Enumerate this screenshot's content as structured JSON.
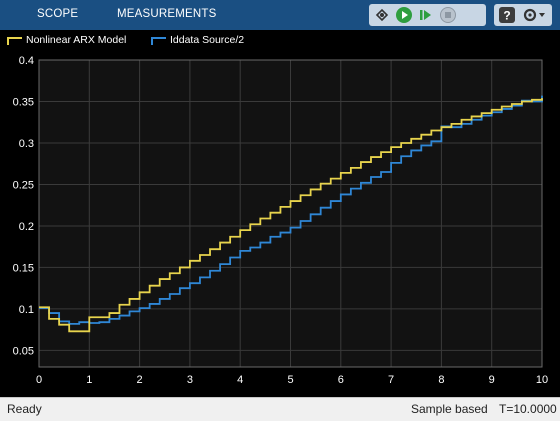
{
  "toolstrip": {
    "tabs": [
      {
        "label": "SCOPE"
      },
      {
        "label": "MEASUREMENTS"
      }
    ],
    "buttons": [
      {
        "name": "highlight-block-icon"
      },
      {
        "name": "run-icon"
      },
      {
        "name": "step-forward-icon"
      },
      {
        "name": "stop-icon"
      },
      {
        "name": "help-icon"
      },
      {
        "name": "settings-dropdown-icon"
      }
    ]
  },
  "legend": [
    {
      "label": "Nonlinear ARX Model",
      "color": "#e8d44d"
    },
    {
      "label": "Iddata Source/2",
      "color": "#2f87d6"
    }
  ],
  "status": {
    "ready": "Ready",
    "mode": "Sample based",
    "time": "T=10.0000"
  },
  "chart_data": {
    "type": "line",
    "step": true,
    "grid": true,
    "background": "#000000",
    "xlim": [
      0,
      10
    ],
    "ylim": [
      0.03,
      0.4
    ],
    "xticks": [
      0,
      1,
      2,
      3,
      4,
      5,
      6,
      7,
      8,
      9,
      10
    ],
    "yticks": [
      0.05,
      0.1,
      0.15,
      0.2,
      0.25,
      0.3,
      0.35,
      0.4
    ],
    "x": [
      0,
      0.2,
      0.4,
      0.6,
      0.8,
      1.0,
      1.2,
      1.4,
      1.6,
      1.8,
      2.0,
      2.2,
      2.4,
      2.6,
      2.8,
      3.0,
      3.2,
      3.4,
      3.6,
      3.8,
      4.0,
      4.2,
      4.4,
      4.6,
      4.8,
      5.0,
      5.2,
      5.4,
      5.6,
      5.8,
      6.0,
      6.2,
      6.4,
      6.6,
      6.8,
      7.0,
      7.2,
      7.4,
      7.6,
      7.8,
      8.0,
      8.2,
      8.4,
      8.6,
      8.8,
      9.0,
      9.2,
      9.4,
      9.6,
      9.8,
      10.0
    ],
    "series": [
      {
        "name": "Nonlinear ARX Model",
        "color": "#e8d44d",
        "values": [
          0.102,
          0.088,
          0.081,
          0.073,
          0.073,
          0.09,
          0.09,
          0.095,
          0.105,
          0.112,
          0.12,
          0.128,
          0.136,
          0.143,
          0.15,
          0.158,
          0.165,
          0.172,
          0.18,
          0.187,
          0.195,
          0.202,
          0.209,
          0.216,
          0.223,
          0.23,
          0.237,
          0.244,
          0.251,
          0.257,
          0.264,
          0.27,
          0.277,
          0.283,
          0.289,
          0.295,
          0.3,
          0.305,
          0.31,
          0.315,
          0.319,
          0.323,
          0.328,
          0.332,
          0.336,
          0.34,
          0.344,
          0.347,
          0.35,
          0.352,
          0.354
        ]
      },
      {
        "name": "Iddata Source/2",
        "color": "#2f87d6",
        "values": [
          0.101,
          0.095,
          0.085,
          0.082,
          0.084,
          0.083,
          0.084,
          0.088,
          0.092,
          0.097,
          0.101,
          0.106,
          0.112,
          0.118,
          0.125,
          0.131,
          0.138,
          0.146,
          0.154,
          0.162,
          0.17,
          0.174,
          0.18,
          0.187,
          0.192,
          0.198,
          0.206,
          0.214,
          0.222,
          0.23,
          0.238,
          0.245,
          0.252,
          0.259,
          0.265,
          0.276,
          0.284,
          0.291,
          0.297,
          0.302,
          0.32,
          0.319,
          0.323,
          0.328,
          0.333,
          0.337,
          0.341,
          0.345,
          0.351,
          0.35,
          0.357
        ]
      }
    ]
  }
}
